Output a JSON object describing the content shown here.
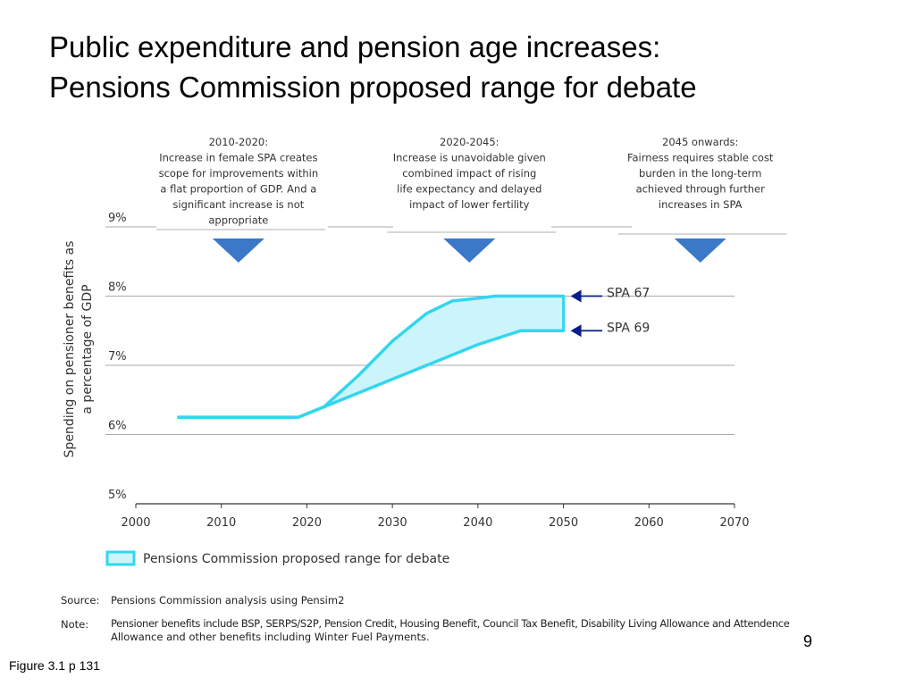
{
  "title": {
    "line1": "Public expenditure and pension age increases:",
    "line2": "Pensions Commission proposed range for debate"
  },
  "chart_data": {
    "type": "area",
    "ylabel_line1": "Spending on pensioner benefits as",
    "ylabel_line2": "a percentage of GDP",
    "y_ticks": [
      "5%",
      "6%",
      "7%",
      "8%",
      "9%"
    ],
    "x_ticks": [
      "2000",
      "2010",
      "2020",
      "2030",
      "2040",
      "2050",
      "2060",
      "2070"
    ],
    "xlim": [
      2000,
      2070
    ],
    "ylim": [
      5,
      9
    ],
    "series": [
      {
        "name": "SPA 67",
        "x": [
          2005,
          2019,
          2022,
          2026,
          2030,
          2034,
          2037,
          2040,
          2042,
          2050
        ],
        "values": [
          6.25,
          6.25,
          6.4,
          6.85,
          7.35,
          7.75,
          7.93,
          7.97,
          8.0,
          8.0
        ]
      },
      {
        "name": "SPA 69",
        "x": [
          2005,
          2019,
          2021,
          2025,
          2030,
          2035,
          2040,
          2045,
          2050
        ],
        "values": [
          6.25,
          6.25,
          6.35,
          6.55,
          6.8,
          7.05,
          7.3,
          7.5,
          7.5
        ]
      }
    ],
    "legend": {
      "label": "Pensions Commission proposed range for debate",
      "placement": "bottom-left"
    },
    "annotations": [
      {
        "heading": "2010-2020:",
        "lines": [
          "Increase in female SPA creates",
          "scope for improvements within",
          "a flat proportion of GDP.  And a",
          "significant increase is not",
          "appropriate"
        ],
        "x": 2012
      },
      {
        "heading": "2020-2045:",
        "lines": [
          "Increase is unavoidable given",
          "combined impact of rising",
          "life expectancy and delayed",
          "impact of lower fertility"
        ],
        "x": 2039
      },
      {
        "heading": "2045 onwards:",
        "lines": [
          "Fairness requires stable cost",
          "burden in the long-term",
          "achieved through further",
          "increases in SPA"
        ],
        "x": 2066
      }
    ],
    "grid": true
  },
  "colors": {
    "series_line": "#33d6ee",
    "band_fill": "#ccf5fb",
    "marker_arrow": "#3b78c8",
    "pointer_arrow": "#0a1d8c",
    "grid": "#aaaaaa"
  },
  "source": {
    "label": "Source:",
    "text": "Pensions Commission analysis using Pensim2"
  },
  "note": {
    "label": "Note:",
    "line1": "Pensioner benefits include BSP, SERPS/S2P, Pension Credit, Housing Benefit, Council Tax Benefit, Disability Living Allowance and Attendence",
    "line2": "Allowance and other benefits including Winter Fuel Payments."
  },
  "page_number": "9",
  "figure_ref": "Figure 3.1 p 131"
}
